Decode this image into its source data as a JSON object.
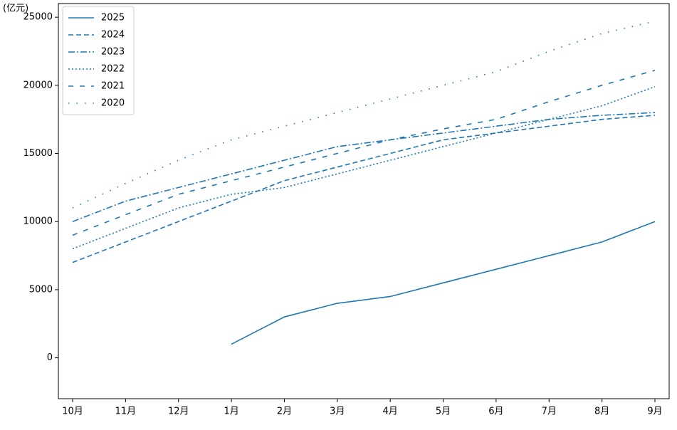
{
  "chart_data": {
    "type": "line",
    "ylabel": "(亿元)",
    "categories": [
      "10月",
      "11月",
      "12月",
      "1月",
      "2月",
      "3月",
      "4月",
      "5月",
      "6月",
      "7月",
      "8月",
      "9月"
    ],
    "series": [
      {
        "name": "2025",
        "color": "#1f77b4",
        "dash": "solid",
        "values": [
          null,
          null,
          null,
          1000,
          3000,
          4000,
          4500,
          5500,
          6500,
          7500,
          8500,
          10000
        ]
      },
      {
        "name": "2024",
        "color": "#1f77b4",
        "dash": "dashed",
        "values": [
          7000,
          8500,
          10000,
          11500,
          13000,
          14000,
          15000,
          16000,
          16500,
          17000,
          17500,
          17800
        ]
      },
      {
        "name": "2023",
        "color": "#1f77b4",
        "dash": "dashdot",
        "values": [
          10000,
          11500,
          12500,
          13500,
          14500,
          15500,
          16000,
          16500,
          17000,
          17500,
          17800,
          18000
        ]
      },
      {
        "name": "2022",
        "color": "#1f77b4",
        "dash": "dotted",
        "values": [
          8000,
          9500,
          11000,
          12000,
          12500,
          13500,
          14500,
          15500,
          16500,
          17500,
          18500,
          19900
        ]
      },
      {
        "name": "2021",
        "color": "#1f77b4",
        "dash": "loosedash",
        "values": [
          9000,
          10500,
          12000,
          13000,
          14000,
          15000,
          16000,
          16800,
          17500,
          18800,
          20000,
          21100
        ]
      },
      {
        "name": "2020",
        "color": "#1f77b4",
        "dash": "loosedot",
        "values": [
          11000,
          12800,
          14500,
          16000,
          17000,
          18000,
          19000,
          20000,
          21000,
          22500,
          23800,
          24700
        ]
      }
    ],
    "ylim": [
      -3000,
      26000
    ],
    "yticks": [
      0,
      5000,
      10000,
      15000,
      20000,
      25000
    ],
    "legend": "upper-left"
  }
}
